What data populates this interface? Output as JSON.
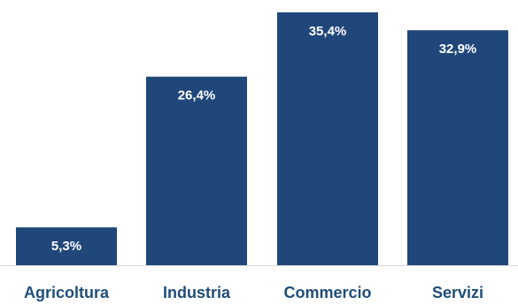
{
  "chart_data": {
    "type": "bar",
    "categories": [
      "Agricoltura",
      "Industria",
      "Commercio",
      "Servizi"
    ],
    "values": [
      5.3,
      26.4,
      35.4,
      32.9
    ],
    "data_labels": [
      "5,3%",
      "26,4%",
      "35,4%",
      "32,9%"
    ],
    "title": "",
    "xlabel": "",
    "ylabel": "",
    "ylim": [
      0,
      35.4
    ],
    "grid": false,
    "legend": "none"
  },
  "colors": {
    "bar": "#20477a",
    "bar_label": "#ffffff",
    "category_label": "#1f4e79",
    "baseline": "#d9d9d9"
  }
}
